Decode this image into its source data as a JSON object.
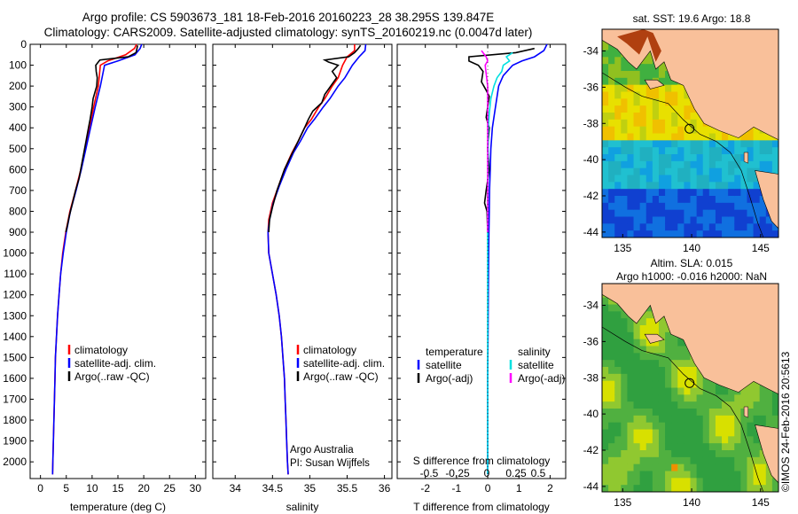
{
  "header": {
    "line1": "Argo profile: CS 5903673_181 18-Feb-2016 20160223_28 38.295S 139.847E",
    "line2": "Climatology: CARS2009. Satellite-adjusted climatology: synTS_20160219.nc (0.0047d later)"
  },
  "side_label": "©IMOS 24-Feb-2016 20:5613",
  "chart_data": [
    {
      "id": "temperature",
      "type": "line",
      "xlabel": "temperature (deg C)",
      "ylabel": "",
      "xlim": [
        -2,
        32
      ],
      "ylim": [
        2080,
        0
      ],
      "xticks": [
        0,
        5,
        10,
        15,
        20,
        25,
        30
      ],
      "yticks": [
        0,
        100,
        200,
        300,
        400,
        500,
        600,
        700,
        800,
        900,
        1000,
        1100,
        1200,
        1300,
        1400,
        1500,
        1600,
        1700,
        1800,
        1900,
        2000
      ],
      "legend": [
        "climatology",
        "satellite-adj. clim.",
        "Argo(..raw -QC)"
      ],
      "legend_position": "lower-center",
      "series": [
        {
          "name": "climatology",
          "color": "#ff0000",
          "points": [
            [
              18.6,
              0
            ],
            [
              18.2,
              20
            ],
            [
              16.5,
              50
            ],
            [
              13.0,
              80
            ],
            [
              11.6,
              100
            ],
            [
              11.2,
              200
            ],
            [
              10.3,
              300
            ],
            [
              9.5,
              400
            ],
            [
              8.6,
              500
            ],
            [
              7.8,
              600
            ],
            [
              6.8,
              700
            ],
            [
              5.7,
              800
            ],
            [
              4.9,
              900
            ],
            [
              4.3,
              1000
            ],
            [
              3.9,
              1100
            ],
            [
              3.6,
              1200
            ],
            [
              3.3,
              1300
            ],
            [
              3.1,
              1400
            ],
            [
              2.9,
              1500
            ],
            [
              2.8,
              1600
            ],
            [
              2.7,
              1700
            ],
            [
              2.6,
              1800
            ],
            [
              2.5,
              1900
            ],
            [
              2.4,
              2000
            ],
            [
              2.35,
              2060
            ]
          ]
        },
        {
          "name": "satellite-adj. clim.",
          "color": "#0000ff",
          "points": [
            [
              19.6,
              0
            ],
            [
              19.3,
              20
            ],
            [
              18.3,
              50
            ],
            [
              15.0,
              80
            ],
            [
              12.4,
              100
            ],
            [
              11.6,
              200
            ],
            [
              10.6,
              300
            ],
            [
              9.7,
              400
            ],
            [
              8.8,
              500
            ],
            [
              7.9,
              600
            ],
            [
              6.9,
              700
            ],
            [
              5.8,
              800
            ],
            [
              5.0,
              900
            ],
            [
              4.4,
              1000
            ],
            [
              3.9,
              1100
            ],
            [
              3.6,
              1200
            ],
            [
              3.3,
              1300
            ],
            [
              3.1,
              1400
            ],
            [
              2.9,
              1500
            ],
            [
              2.8,
              1600
            ],
            [
              2.7,
              1700
            ],
            [
              2.6,
              1800
            ],
            [
              2.5,
              1900
            ],
            [
              2.4,
              2000
            ],
            [
              2.35,
              2060
            ]
          ]
        },
        {
          "name": "Argo(..raw -QC)",
          "color": "#000000",
          "points": [
            [
              18.8,
              5
            ],
            [
              18.7,
              20
            ],
            [
              18.5,
              40
            ],
            [
              17.0,
              60
            ],
            [
              11.5,
              75
            ],
            [
              10.7,
              100
            ],
            [
              10.8,
              130
            ],
            [
              11.0,
              160
            ],
            [
              10.9,
              200
            ],
            [
              10.2,
              260
            ],
            [
              10.0,
              300
            ],
            [
              9.6,
              360
            ],
            [
              9.3,
              400
            ],
            [
              8.7,
              480
            ],
            [
              8.1,
              560
            ],
            [
              7.5,
              640
            ],
            [
              6.8,
              700
            ],
            [
              6.1,
              770
            ],
            [
              5.6,
              820
            ],
            [
              5.2,
              870
            ],
            [
              4.9,
              900
            ]
          ]
        }
      ]
    },
    {
      "id": "salinity",
      "type": "line",
      "xlabel": "salinity",
      "ylabel": "",
      "xlim": [
        33.7,
        36.1
      ],
      "ylim": [
        2080,
        0
      ],
      "xticks": [
        34,
        34.5,
        35,
        35.5,
        36
      ],
      "legend": [
        "climatology",
        "satellite-adj. clim.",
        "Argo(..raw -QC)"
      ],
      "legend_position": "lower-center",
      "annotation": [
        "Argo Australia",
        "PI: Susan Wijffels"
      ],
      "series": [
        {
          "name": "climatology",
          "color": "#ff0000",
          "points": [
            [
              35.6,
              0
            ],
            [
              35.6,
              30
            ],
            [
              35.5,
              60
            ],
            [
              35.44,
              100
            ],
            [
              35.38,
              160
            ],
            [
              35.3,
              200
            ],
            [
              35.2,
              260
            ],
            [
              35.12,
              300
            ],
            [
              35.02,
              360
            ],
            [
              34.93,
              400
            ],
            [
              34.85,
              460
            ],
            [
              34.76,
              520
            ],
            [
              34.66,
              600
            ],
            [
              34.58,
              680
            ],
            [
              34.5,
              760
            ],
            [
              34.45,
              840
            ],
            [
              34.44,
              900
            ],
            [
              34.45,
              1000
            ],
            [
              34.5,
              1100
            ],
            [
              34.55,
              1200
            ],
            [
              34.59,
              1300
            ],
            [
              34.62,
              1400
            ],
            [
              34.64,
              1500
            ],
            [
              34.66,
              1600
            ],
            [
              34.67,
              1700
            ],
            [
              34.68,
              1800
            ],
            [
              34.69,
              1900
            ],
            [
              34.7,
              2000
            ],
            [
              34.71,
              2060
            ]
          ]
        },
        {
          "name": "satellite-adj. clim.",
          "color": "#0000ff",
          "points": [
            [
              35.75,
              0
            ],
            [
              35.74,
              30
            ],
            [
              35.66,
              60
            ],
            [
              35.57,
              100
            ],
            [
              35.47,
              160
            ],
            [
              35.38,
              200
            ],
            [
              35.27,
              260
            ],
            [
              35.18,
              300
            ],
            [
              35.06,
              360
            ],
            [
              34.97,
              400
            ],
            [
              34.88,
              460
            ],
            [
              34.78,
              520
            ],
            [
              34.68,
              600
            ],
            [
              34.59,
              680
            ],
            [
              34.51,
              760
            ],
            [
              34.46,
              840
            ],
            [
              34.44,
              900
            ],
            [
              34.45,
              1000
            ],
            [
              34.5,
              1100
            ],
            [
              34.55,
              1200
            ],
            [
              34.59,
              1300
            ],
            [
              34.62,
              1400
            ],
            [
              34.64,
              1500
            ],
            [
              34.66,
              1600
            ],
            [
              34.67,
              1700
            ],
            [
              34.68,
              1800
            ],
            [
              34.69,
              1900
            ],
            [
              34.7,
              2000
            ],
            [
              34.71,
              2060
            ]
          ]
        },
        {
          "name": "Argo(..raw -QC)",
          "color": "#000000",
          "points": [
            [
              35.68,
              5
            ],
            [
              35.65,
              20
            ],
            [
              35.6,
              40
            ],
            [
              35.52,
              60
            ],
            [
              35.2,
              75
            ],
            [
              35.25,
              85
            ],
            [
              35.38,
              100
            ],
            [
              35.3,
              130
            ],
            [
              35.36,
              160
            ],
            [
              35.28,
              200
            ],
            [
              35.2,
              240
            ],
            [
              35.16,
              280
            ],
            [
              35.04,
              320
            ],
            [
              34.98,
              360
            ],
            [
              34.93,
              400
            ],
            [
              34.85,
              460
            ],
            [
              34.74,
              540
            ],
            [
              34.66,
              600
            ],
            [
              34.56,
              700
            ],
            [
              34.5,
              780
            ],
            [
              34.46,
              840
            ],
            [
              34.45,
              900
            ]
          ]
        }
      ]
    },
    {
      "id": "differences",
      "type": "line",
      "xlabel": "T difference from climatology",
      "xlabel_secondary": "S difference from climatology",
      "xlim": [
        -2.9,
        2.5
      ],
      "ylim": [
        2080,
        0
      ],
      "xticks": [
        -2,
        -1,
        0,
        1,
        2
      ],
      "xticks_secondary": [
        "-0.5",
        "-0.25",
        "0",
        "0.25",
        "0.5"
      ],
      "xticks_secondary_values": [
        -0.5,
        -0.25,
        0,
        0.25,
        0.5
      ],
      "legend": {
        "temperature_title": "temperature",
        "salinity_title": "salinity",
        "items": [
          {
            "label": "satellite",
            "color": "#0000ff"
          },
          {
            "label": "Argo(-adj)",
            "color": "#000000"
          },
          {
            "label": "satellite",
            "color": "#00e0e0"
          },
          {
            "label": "Argo(-adj)",
            "color": "#ff00ff"
          }
        ]
      },
      "series": [
        {
          "name": "temperature satellite",
          "color": "#0000ff",
          "points": [
            [
              1.9,
              0
            ],
            [
              1.8,
              30
            ],
            [
              1.5,
              60
            ],
            [
              1.1,
              80
            ],
            [
              0.8,
              100
            ],
            [
              0.5,
              150
            ],
            [
              0.35,
              200
            ],
            [
              0.25,
              300
            ],
            [
              0.15,
              400
            ],
            [
              0.1,
              500
            ],
            [
              0.08,
              600
            ],
            [
              0.06,
              700
            ],
            [
              0.05,
              800
            ],
            [
              0.04,
              900
            ],
            [
              0.03,
              1000
            ],
            [
              0.02,
              1200
            ],
            [
              0.01,
              1400
            ],
            [
              0.0,
              1600
            ],
            [
              0.0,
              2060
            ]
          ]
        },
        {
          "name": "temperature Argo(-adj)",
          "color": "#000000",
          "points": [
            [
              1.5,
              20
            ],
            [
              0.9,
              40
            ],
            [
              -0.6,
              60
            ],
            [
              -0.6,
              80
            ],
            [
              -0.3,
              100
            ],
            [
              -0.15,
              130
            ],
            [
              -0.2,
              180
            ],
            [
              -0.05,
              220
            ],
            [
              0.05,
              250
            ],
            [
              0.0,
              300
            ],
            [
              -0.05,
              350
            ],
            [
              0.05,
              400
            ],
            [
              0.0,
              500
            ],
            [
              0.05,
              600
            ],
            [
              -0.05,
              700
            ],
            [
              -0.1,
              760
            ],
            [
              -0.02,
              800
            ],
            [
              0.0,
              900
            ]
          ]
        },
        {
          "name": "salinity satellite",
          "color": "#00e0e0",
          "points": [
            [
              0.8,
              40
            ],
            [
              0.6,
              60
            ],
            [
              0.7,
              80
            ],
            [
              0.5,
              100
            ],
            [
              0.45,
              130
            ],
            [
              0.3,
              160
            ],
            [
              0.2,
              200
            ],
            [
              0.1,
              260
            ],
            [
              0.05,
              330
            ],
            [
              0.02,
              400
            ],
            [
              0.01,
              600
            ],
            [
              0.0,
              800
            ],
            [
              0.0,
              2060
            ]
          ]
        },
        {
          "name": "salinity Argo(-adj)",
          "color": "#ff00ff",
          "points": [
            [
              -0.2,
              30
            ],
            [
              -0.05,
              60
            ],
            [
              0.0,
              80
            ],
            [
              -0.08,
              100
            ],
            [
              -0.05,
              140
            ],
            [
              0.0,
              200
            ],
            [
              0.0,
              300
            ],
            [
              0.0,
              400
            ],
            [
              0.0,
              500
            ],
            [
              0.0,
              700
            ],
            [
              0.0,
              900
            ]
          ]
        }
      ]
    },
    {
      "id": "sst_map",
      "type": "heatmap",
      "title": "sat. SST: 19.6 Argo: 18.8",
      "xlim": [
        133.5,
        146.3
      ],
      "ylim": [
        -44.3,
        -32.8
      ],
      "xticks": [
        135,
        140,
        145
      ],
      "yticks": [
        -34,
        -36,
        -38,
        -40,
        -42,
        -44
      ],
      "argo_position": [
        139.847,
        -38.295
      ],
      "colors": {
        "land": "#f9c09a",
        "warm": "#b04010",
        "mid": "#e8e000",
        "cool": "#20c0d0",
        "cold": "#1040d0"
      }
    },
    {
      "id": "sla_map",
      "type": "heatmap",
      "title_line1": "Altim. SLA: 0.015",
      "title_line2": "Argo h1000: -0.016 h2000: NaN",
      "xlim": [
        133.5,
        146.3
      ],
      "ylim": [
        -44.3,
        -32.8
      ],
      "xticks": [
        135,
        140,
        145
      ],
      "yticks": [
        -34,
        -36,
        -38,
        -40,
        -42,
        -44
      ],
      "argo_position": [
        139.847,
        -38.295
      ],
      "colors": {
        "land": "#f9c09a",
        "base": "#30a040",
        "high": "#d8e000",
        "peak": "#f09000"
      }
    }
  ]
}
